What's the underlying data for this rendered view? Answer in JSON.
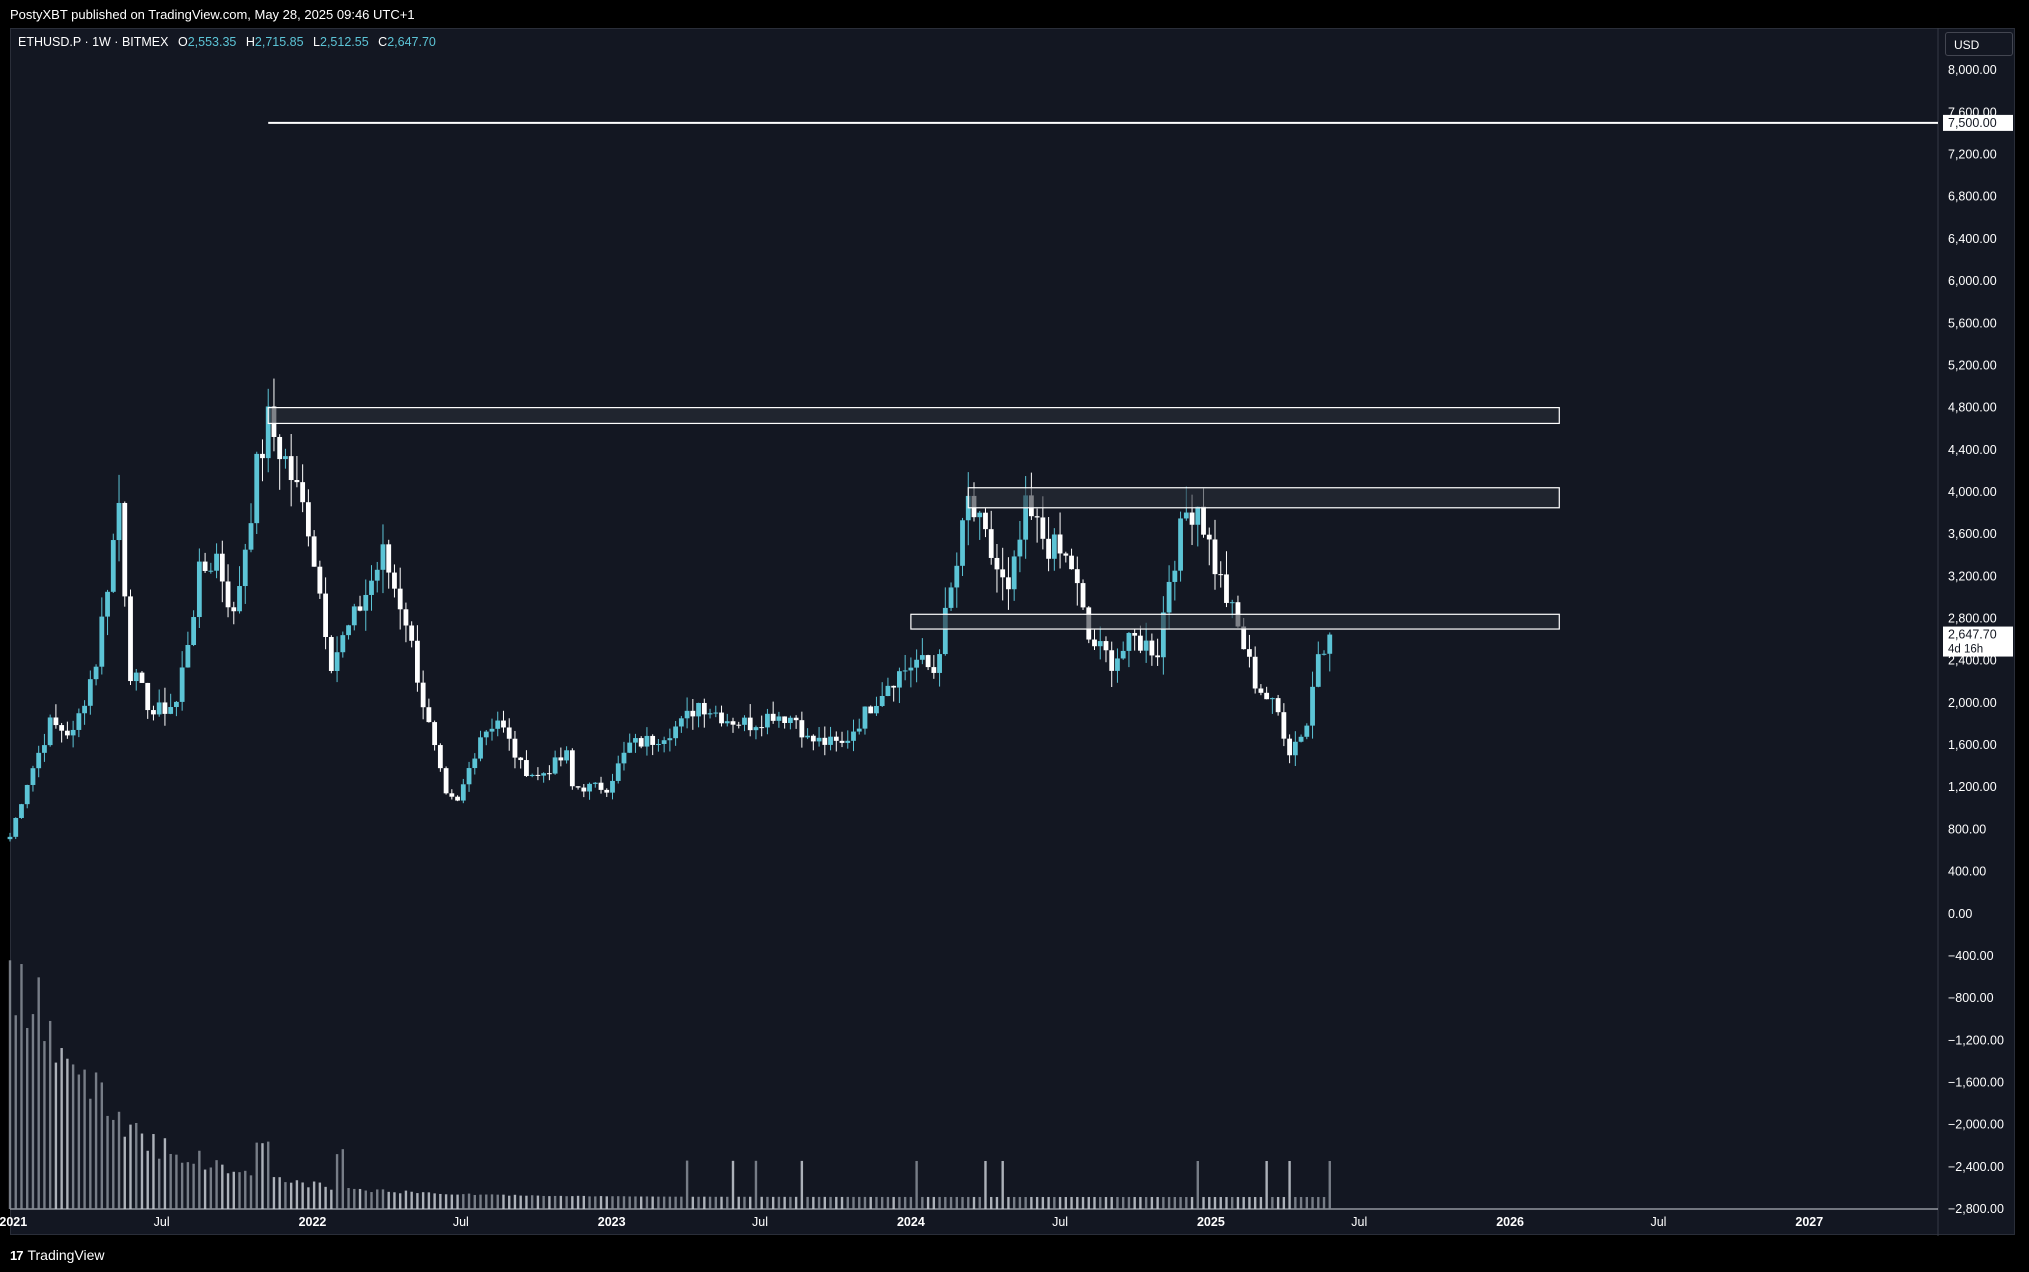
{
  "header": {
    "published_text": "PostyXBT published on TradingView.com, May 28, 2025 09:46 UTC+1"
  },
  "legend": {
    "symbol": "ETHUSD.P · 1W · BITMEX",
    "open_label": "O",
    "open_value": "2,553.35",
    "high_label": "H",
    "high_value": "2,715.85",
    "low_label": "L",
    "low_value": "2,512.55",
    "close_label": "C",
    "close_value": "2,647.70"
  },
  "currency": "USD",
  "footer": {
    "brand": "TradingView",
    "logo_glyph": "17"
  },
  "colors": {
    "background": "#131722",
    "up_candle": "#5cc4d6",
    "down_candle": "#ffffff",
    "horizontal_line": "#ffffff",
    "zone_fill": "#2a2e39"
  },
  "chart_data": {
    "type": "candlestick",
    "symbol": "ETHUSD.P",
    "interval": "1W",
    "exchange": "BITMEX",
    "y_range": [
      -2800,
      8400
    ],
    "y_ticks": [
      8000,
      7600,
      7200,
      6800,
      6400,
      6000,
      5600,
      5200,
      4800,
      4400,
      4000,
      3600,
      3200,
      2800,
      2400,
      2000,
      1600,
      1200,
      800,
      400,
      0,
      -400,
      -800,
      -1200,
      -1600,
      -2000,
      -2400,
      -2800
    ],
    "y_tick_labels": [
      "8,000.00",
      "7,600.00",
      "7,200.00",
      "6,800.00",
      "6,400.00",
      "6,000.00",
      "5,600.00",
      "5,200.00",
      "4,800.00",
      "4,400.00",
      "4,000.00",
      "3,600.00",
      "3,200.00",
      "2,800.00",
      "2,400.00",
      "2,000.00",
      "1,600.00",
      "1,200.00",
      "800.00",
      "400.00",
      "0.00",
      "−400.00",
      "−800.00",
      "−1,200.00",
      "−1,600.00",
      "−2,000.00",
      "−2,400.00",
      "−2,800.00"
    ],
    "x_ticks": [
      {
        "date": "2021-01-01",
        "label": "2021"
      },
      {
        "date": "2021-07-01",
        "label": "Jul"
      },
      {
        "date": "2022-01-01",
        "label": "2022"
      },
      {
        "date": "2022-07-01",
        "label": "Jul"
      },
      {
        "date": "2023-01-01",
        "label": "2023"
      },
      {
        "date": "2023-07-01",
        "label": "Jul"
      },
      {
        "date": "2024-01-01",
        "label": "2024"
      },
      {
        "date": "2024-07-01",
        "label": "Jul"
      },
      {
        "date": "2025-01-01",
        "label": "2025"
      },
      {
        "date": "2025-07-01",
        "label": "Jul"
      },
      {
        "date": "2026-01-01",
        "label": "2026"
      },
      {
        "date": "2026-07-01",
        "label": "Jul"
      },
      {
        "date": "2027-01-01",
        "label": "2027"
      }
    ],
    "price_path": [
      [
        "2020-12-28",
        730
      ],
      [
        "2021-01-18",
        1250
      ],
      [
        "2021-02-15",
        1800
      ],
      [
        "2021-03-15",
        1700
      ],
      [
        "2021-04-12",
        2400
      ],
      [
        "2021-05-10",
        3900
      ],
      [
        "2021-05-24",
        2300
      ],
      [
        "2021-06-21",
        1900
      ],
      [
        "2021-07-19",
        2000
      ],
      [
        "2021-08-16",
        3200
      ],
      [
        "2021-09-06",
        3400
      ],
      [
        "2021-09-27",
        2800
      ],
      [
        "2021-10-25",
        4200
      ],
      [
        "2021-11-08",
        4650
      ],
      [
        "2021-11-29",
        4300
      ],
      [
        "2021-12-27",
        3700
      ],
      [
        "2022-01-24",
        2400
      ],
      [
        "2022-02-21",
        2800
      ],
      [
        "2022-03-28",
        3400
      ],
      [
        "2022-04-25",
        2800
      ],
      [
        "2022-05-16",
        2000
      ],
      [
        "2022-06-13",
        1100
      ],
      [
        "2022-06-27",
        1050
      ],
      [
        "2022-07-25",
        1700
      ],
      [
        "2022-08-15",
        1850
      ],
      [
        "2022-09-12",
        1400
      ],
      [
        "2022-10-03",
        1300
      ],
      [
        "2022-11-07",
        1500
      ],
      [
        "2022-11-14",
        1200
      ],
      [
        "2022-12-26",
        1200
      ],
      [
        "2023-01-23",
        1600
      ],
      [
        "2023-02-20",
        1650
      ],
      [
        "2023-03-27",
        1800
      ],
      [
        "2023-04-17",
        2000
      ],
      [
        "2023-05-22",
        1850
      ],
      [
        "2023-06-19",
        1800
      ],
      [
        "2023-07-17",
        1900
      ],
      [
        "2023-08-14",
        1850
      ],
      [
        "2023-08-28",
        1650
      ],
      [
        "2023-10-09",
        1600
      ],
      [
        "2023-11-06",
        1900
      ],
      [
        "2023-12-04",
        2200
      ],
      [
        "2024-01-08",
        2400
      ],
      [
        "2024-01-29",
        2300
      ],
      [
        "2024-02-26",
        3300
      ],
      [
        "2024-03-11",
        3900
      ],
      [
        "2024-04-08",
        3400
      ],
      [
        "2024-04-29",
        3000
      ],
      [
        "2024-05-20",
        3800
      ],
      [
        "2024-06-17",
        3500
      ],
      [
        "2024-07-15",
        3300
      ],
      [
        "2024-08-05",
        2600
      ],
      [
        "2024-09-02",
        2400
      ],
      [
        "2024-09-30",
        2600
      ],
      [
        "2024-10-28",
        2500
      ],
      [
        "2024-11-11",
        3200
      ],
      [
        "2024-12-02",
        3800
      ],
      [
        "2024-12-16",
        3900
      ],
      [
        "2025-01-06",
        3300
      ],
      [
        "2025-02-03",
        2700
      ],
      [
        "2025-02-24",
        2200
      ],
      [
        "2025-03-24",
        1900
      ],
      [
        "2025-04-07",
        1550
      ],
      [
        "2025-04-28",
        1800
      ],
      [
        "2025-05-12",
        2500
      ],
      [
        "2025-05-26",
        2650
      ]
    ],
    "zones": [
      {
        "start": "2021-11-08",
        "end": "2026-03-02",
        "low": 4650,
        "high": 4800
      },
      {
        "start": "2024-03-11",
        "end": "2026-03-02",
        "low": 3850,
        "high": 4040
      },
      {
        "start": "2024-01-01",
        "end": "2026-03-02",
        "low": 2700,
        "high": 2840
      }
    ],
    "horizontal_line": {
      "price": 7500,
      "label": "7,500.00",
      "start": "2021-11-08"
    },
    "last_price": {
      "price": 2647.7,
      "label": "2,647.70",
      "countdown": "4d 16h"
    }
  }
}
